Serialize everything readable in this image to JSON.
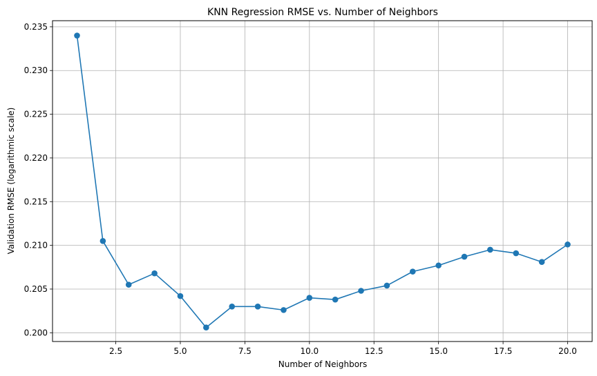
{
  "chart_data": {
    "type": "line",
    "title": "KNN Regression RMSE vs. Number of Neighbors",
    "xlabel": "Number of Neighbors",
    "ylabel": "Validation RMSE (logarithmic scale)",
    "x": [
      1,
      2,
      3,
      4,
      5,
      6,
      7,
      8,
      9,
      10,
      11,
      12,
      13,
      14,
      15,
      16,
      17,
      18,
      19,
      20
    ],
    "series": [
      {
        "values": [
          0.234,
          0.2105,
          0.2055,
          0.2068,
          0.2042,
          0.2006,
          0.203,
          0.203,
          0.2026,
          0.204,
          0.2038,
          0.2048,
          0.2054,
          0.207,
          0.2077,
          0.2087,
          0.2095,
          0.2091,
          0.2081,
          0.2101
        ],
        "color": "#1f77b4",
        "marker": "circle"
      }
    ],
    "xlim": [
      0.05,
      20.95
    ],
    "ylim": [
      0.199,
      0.2357
    ],
    "xticks": [
      2.5,
      5.0,
      7.5,
      10.0,
      12.5,
      15.0,
      17.5,
      20.0
    ],
    "xtick_labels": [
      "2.5",
      "5.0",
      "7.5",
      "10.0",
      "12.5",
      "15.0",
      "17.5",
      "20.0"
    ],
    "yticks": [
      0.2,
      0.205,
      0.21,
      0.215,
      0.22,
      0.225,
      0.23,
      0.235
    ],
    "ytick_labels": [
      "0.200",
      "0.205",
      "0.210",
      "0.215",
      "0.220",
      "0.225",
      "0.230",
      "0.235"
    ],
    "grid": true
  }
}
